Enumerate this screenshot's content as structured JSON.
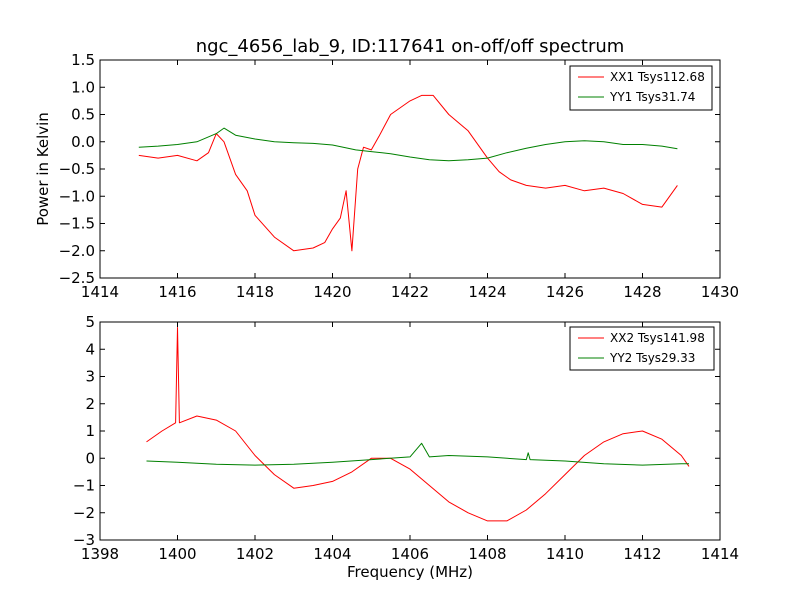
{
  "title": "ngc_4656_lab_9, ID:117641 on-off/off spectrum",
  "colors": {
    "red": "#ff0000",
    "green": "#008000"
  },
  "chart_data": [
    {
      "type": "line",
      "xlabel": "",
      "ylabel": "Power in Kelvin",
      "xlim": [
        1414,
        1430
      ],
      "ylim": [
        -2.5,
        1.5
      ],
      "xticks": [
        1414,
        1416,
        1418,
        1420,
        1422,
        1424,
        1426,
        1428,
        1430
      ],
      "yticks": [
        -2.5,
        -2.0,
        -1.5,
        -1.0,
        -0.5,
        0.0,
        0.5,
        1.0,
        1.5
      ],
      "xtick_labels": [
        "1414",
        "1416",
        "1418",
        "1420",
        "1422",
        "1424",
        "1426",
        "1428",
        "1430"
      ],
      "ytick_labels": [
        "−2.5",
        "−2.0",
        "−1.5",
        "−1.0",
        "−0.5",
        "0.0",
        "0.5",
        "1.0",
        "1.5"
      ],
      "legend_position": "top-right",
      "series": [
        {
          "name": "XX1 Tsys112.68",
          "color": "#ff0000",
          "x": [
            1415.0,
            1415.5,
            1416.0,
            1416.5,
            1416.8,
            1417.0,
            1417.2,
            1417.5,
            1417.8,
            1418.0,
            1418.5,
            1419.0,
            1419.5,
            1419.8,
            1420.0,
            1420.2,
            1420.35,
            1420.5,
            1420.65,
            1420.8,
            1421.0,
            1421.2,
            1421.5,
            1422.0,
            1422.3,
            1422.6,
            1423.0,
            1423.5,
            1424.0,
            1424.3,
            1424.6,
            1425.0,
            1425.5,
            1426.0,
            1426.5,
            1427.0,
            1427.5,
            1428.0,
            1428.5,
            1428.9
          ],
          "y": [
            -0.25,
            -0.3,
            -0.25,
            -0.35,
            -0.2,
            0.15,
            0.0,
            -0.6,
            -0.9,
            -1.35,
            -1.75,
            -2.0,
            -1.95,
            -1.85,
            -1.6,
            -1.4,
            -0.9,
            -2.0,
            -0.5,
            -0.1,
            -0.15,
            0.1,
            0.5,
            0.75,
            0.85,
            0.85,
            0.5,
            0.2,
            -0.3,
            -0.55,
            -0.7,
            -0.8,
            -0.85,
            -0.8,
            -0.9,
            -0.85,
            -0.95,
            -1.15,
            -1.2,
            -0.8
          ]
        },
        {
          "name": "YY1 Tsys31.74",
          "color": "#008000",
          "x": [
            1415.0,
            1415.5,
            1416.0,
            1416.5,
            1417.0,
            1417.2,
            1417.5,
            1418.0,
            1418.5,
            1419.0,
            1419.5,
            1420.0,
            1420.4,
            1420.6,
            1421.0,
            1421.5,
            1422.0,
            1422.5,
            1423.0,
            1423.5,
            1424.0,
            1424.5,
            1425.0,
            1425.5,
            1426.0,
            1426.5,
            1427.0,
            1427.5,
            1428.0,
            1428.5,
            1428.9
          ],
          "y": [
            -0.1,
            -0.08,
            -0.05,
            0.0,
            0.15,
            0.25,
            0.12,
            0.05,
            0.0,
            -0.02,
            -0.03,
            -0.06,
            -0.12,
            -0.15,
            -0.18,
            -0.22,
            -0.28,
            -0.33,
            -0.35,
            -0.33,
            -0.3,
            -0.2,
            -0.12,
            -0.05,
            0.0,
            0.02,
            0.0,
            -0.05,
            -0.05,
            -0.08,
            -0.13
          ]
        }
      ]
    },
    {
      "type": "line",
      "xlabel": "Frequency (MHz)",
      "ylabel": "",
      "xlim": [
        1398,
        1414
      ],
      "ylim": [
        -3,
        5
      ],
      "xticks": [
        1398,
        1400,
        1402,
        1404,
        1406,
        1408,
        1410,
        1412,
        1414
      ],
      "yticks": [
        -3,
        -2,
        -1,
        0,
        1,
        2,
        3,
        4,
        5
      ],
      "xtick_labels": [
        "1398",
        "1400",
        "1402",
        "1404",
        "1406",
        "1408",
        "1410",
        "1412",
        "1414"
      ],
      "ytick_labels": [
        "−3",
        "−2",
        "−1",
        "0",
        "1",
        "2",
        "3",
        "4",
        "5"
      ],
      "legend_position": "top-right",
      "series": [
        {
          "name": "XX2 Tsys141.98",
          "color": "#ff0000",
          "x": [
            1399.2,
            1399.6,
            1399.95,
            1400.0,
            1400.05,
            1400.5,
            1401.0,
            1401.5,
            1402.0,
            1402.5,
            1403.0,
            1403.5,
            1404.0,
            1404.5,
            1405.0,
            1405.5,
            1406.0,
            1406.5,
            1407.0,
            1407.5,
            1408.0,
            1408.5,
            1409.0,
            1409.5,
            1410.0,
            1410.5,
            1411.0,
            1411.5,
            1412.0,
            1412.5,
            1413.0,
            1413.2
          ],
          "y": [
            0.6,
            1.0,
            1.3,
            4.8,
            1.3,
            1.55,
            1.4,
            1.0,
            0.1,
            -0.6,
            -1.1,
            -1.0,
            -0.85,
            -0.5,
            0.0,
            0.0,
            -0.4,
            -1.0,
            -1.6,
            -2.0,
            -2.3,
            -2.3,
            -1.9,
            -1.3,
            -0.6,
            0.1,
            0.6,
            0.9,
            1.0,
            0.7,
            0.1,
            -0.3
          ]
        },
        {
          "name": "YY2 Tsys29.33",
          "color": "#008000",
          "x": [
            1399.2,
            1400.0,
            1401.0,
            1402.0,
            1403.0,
            1404.0,
            1405.0,
            1406.0,
            1406.3,
            1406.5,
            1407.0,
            1408.0,
            1409.0,
            1409.05,
            1409.1,
            1410.0,
            1411.0,
            1412.0,
            1413.0,
            1413.2
          ],
          "y": [
            -0.1,
            -0.15,
            -0.22,
            -0.25,
            -0.22,
            -0.15,
            -0.05,
            0.05,
            0.55,
            0.05,
            0.1,
            0.05,
            -0.05,
            0.2,
            -0.05,
            -0.1,
            -0.2,
            -0.25,
            -0.2,
            -0.2
          ]
        }
      ]
    }
  ]
}
